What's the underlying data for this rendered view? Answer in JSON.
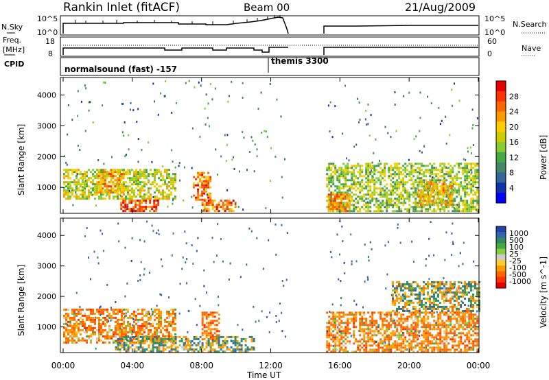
{
  "header": {
    "title": "Rankin Inlet (fitACF)",
    "beam": "Beam 00",
    "date": "21/Aug/2009"
  },
  "top_panels": {
    "nsky_label": "N.Sky",
    "nsky_ticks": [
      "10^5",
      "10^0"
    ],
    "nsearch_label": "N.Search",
    "nsearch_ticks": [
      "10^5",
      "10^0"
    ],
    "freq_label_1": "Freq.",
    "freq_label_2": "[MHz]",
    "freq_ticks": [
      "18",
      "8"
    ],
    "nave_label": "Nave",
    "nave_ticks": [
      "60",
      "0"
    ],
    "cpid_label": "CPID",
    "cpid_mode_1": "normalsound (fast) -157",
    "cpid_mode_2": "themis 3300"
  },
  "power_panel": {
    "ylabel": "Slant Range [km]",
    "cbar_label": "Power [dB]",
    "cbar_ticks": [
      "28",
      "24",
      "20",
      "16",
      "12",
      "8",
      "4"
    ],
    "cbar_colors": [
      "#e60000",
      "#ff3300",
      "#ff6600",
      "#ff9900",
      "#ffcc00",
      "#cccc00",
      "#88cc33",
      "#44aa44",
      "#448866",
      "#336699",
      "#1133aa",
      "#0000ff"
    ]
  },
  "velocity_panel": {
    "ylabel": "Slant Range [km]",
    "cbar_label": "Velocity [m s^-1]",
    "cbar_ticks": [
      "1000",
      "500",
      "100",
      "25",
      "-25",
      "-100",
      "-500",
      "-1000"
    ],
    "cbar_colors": [
      "#2244aa",
      "#3366aa",
      "#338866",
      "#44aa44",
      "#88cc44",
      "#cccccc",
      "#ffcc33",
      "#ff9900",
      "#ff6600",
      "#ff3300",
      "#e60000"
    ]
  },
  "xaxis": {
    "label": "Time UT",
    "ticks": [
      "00:00",
      "04:00",
      "08:00",
      "12:00",
      "16:00",
      "20:00",
      "00:00"
    ]
  },
  "chart_data": {
    "type": "heatmap",
    "title": "Rankin Inlet (fitACF)",
    "xlabel": "Time UT",
    "ylabel": "Slant Range [km]",
    "xlim_hours": [
      0,
      24
    ],
    "ylim_km": [
      180,
      4500
    ],
    "data_gap_hours": [
      13.0,
      15.2
    ],
    "power_features": [
      {
        "t_start": 0.0,
        "t_end": 6.5,
        "r_low": 600,
        "r_high": 1600,
        "level_db": 16
      },
      {
        "t_start": 2.0,
        "t_end": 3.5,
        "r_low": 800,
        "r_high": 1600,
        "level_db": 22
      },
      {
        "t_start": 3.3,
        "t_end": 5.5,
        "r_low": 200,
        "r_high": 600,
        "level_db": 26
      },
      {
        "t_start": 7.5,
        "t_end": 8.5,
        "r_low": 600,
        "r_high": 1500,
        "level_db": 24
      },
      {
        "t_start": 8.0,
        "t_end": 10.0,
        "r_low": 200,
        "r_high": 600,
        "level_db": 24
      },
      {
        "t_start": 15.2,
        "t_end": 24.0,
        "r_low": 200,
        "r_high": 1800,
        "level_db": 14
      },
      {
        "t_start": 15.3,
        "t_end": 16.5,
        "r_low": 250,
        "r_high": 800,
        "level_db": 22
      },
      {
        "t_start": 20.5,
        "t_end": 22.5,
        "r_low": 400,
        "r_high": 1200,
        "level_db": 20
      }
    ],
    "velocity_features": [
      {
        "t_start": 0.0,
        "t_end": 6.5,
        "r_low": 500,
        "r_high": 1600,
        "vel": -300
      },
      {
        "t_start": 3.0,
        "t_end": 11.0,
        "r_low": 200,
        "r_high": 700,
        "vel": 100
      },
      {
        "t_start": 8.0,
        "t_end": 9.0,
        "r_low": 600,
        "r_high": 1500,
        "vel": -400
      },
      {
        "t_start": 15.2,
        "t_end": 24.0,
        "r_low": 200,
        "r_high": 1500,
        "vel": -300
      },
      {
        "t_start": 19.0,
        "t_end": 24.0,
        "r_low": 1500,
        "r_high": 2500,
        "vel": 0
      }
    ]
  }
}
